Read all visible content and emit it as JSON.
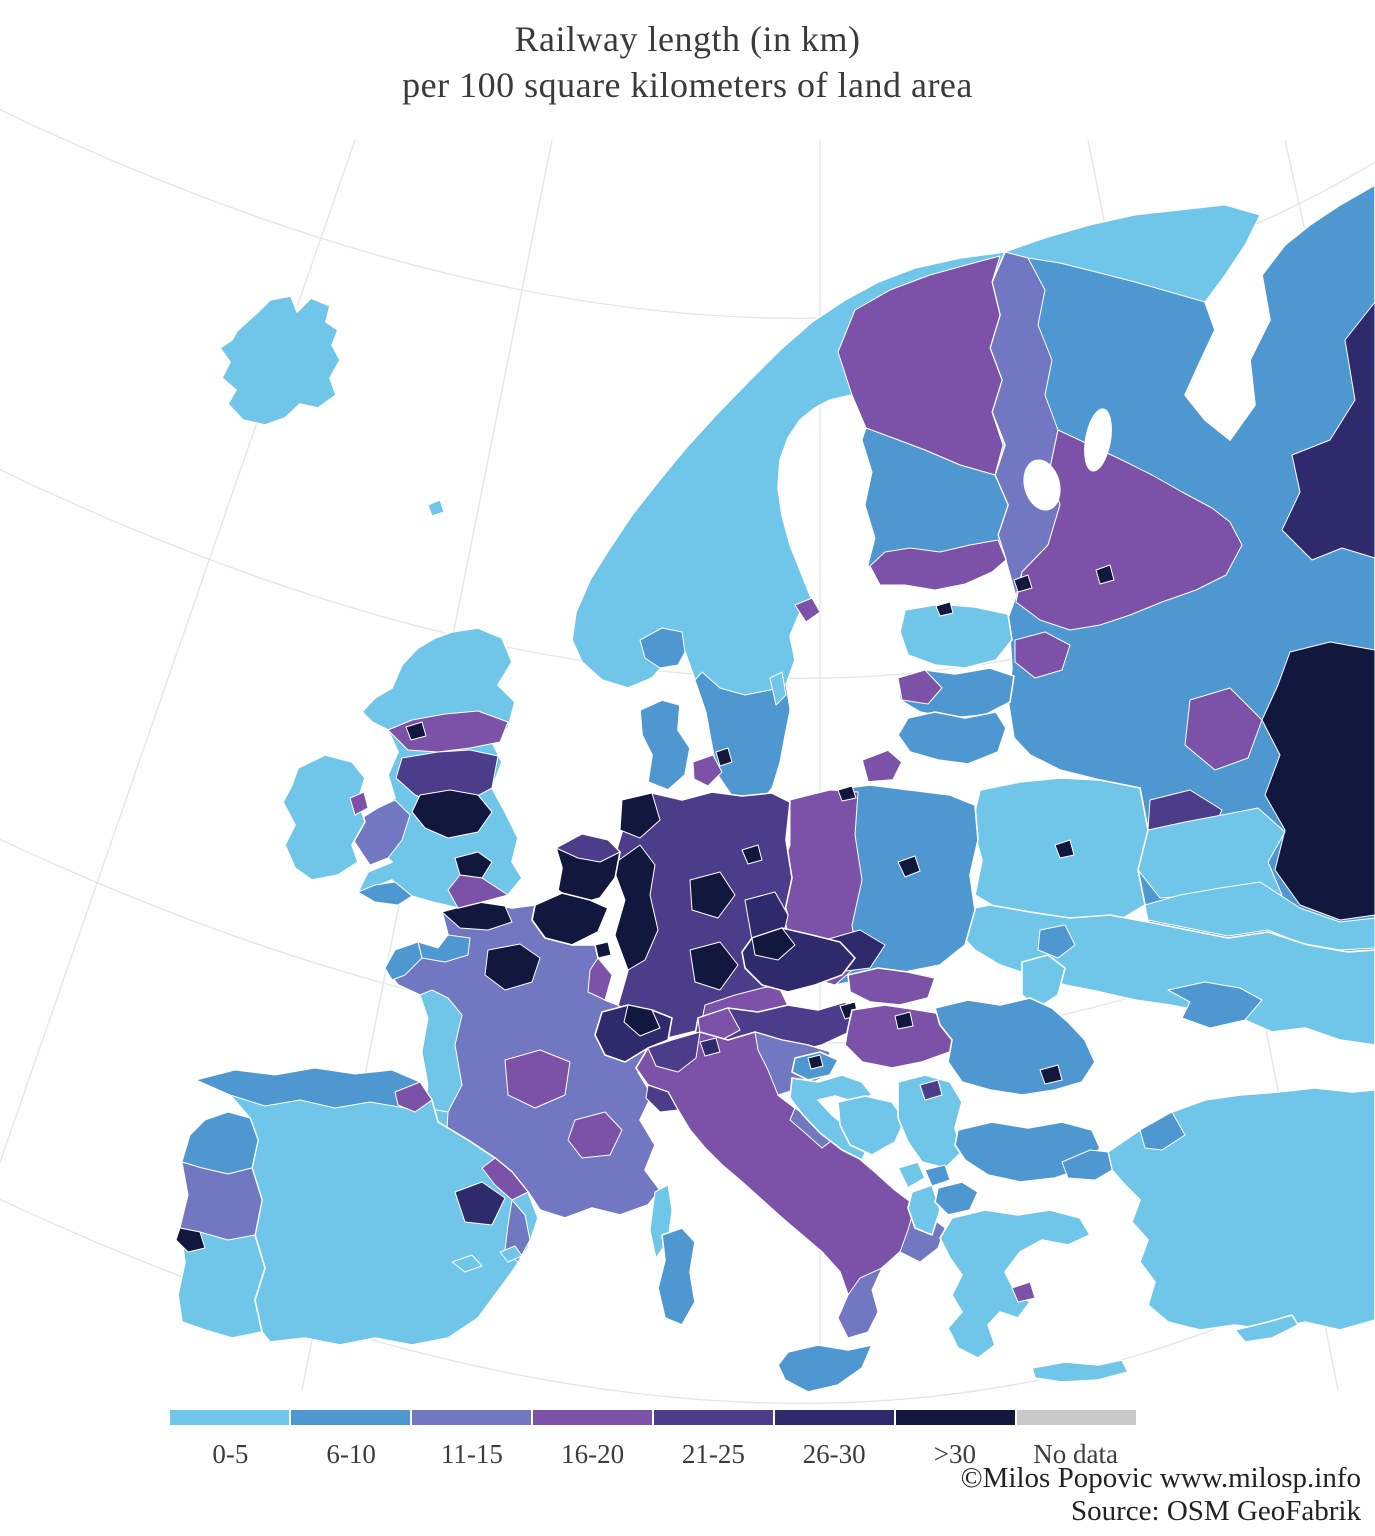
{
  "title": {
    "line1": "Railway length (in km)",
    "line2": "per 100 square kilometers of land area"
  },
  "legend": {
    "classes": [
      {
        "label": "0-5",
        "color": "#6FC6E9"
      },
      {
        "label": "6-10",
        "color": "#4E97D1"
      },
      {
        "label": "11-15",
        "color": "#7277C2"
      },
      {
        "label": "16-20",
        "color": "#7B52A7"
      },
      {
        "label": "21-25",
        "color": "#4C3D8A"
      },
      {
        "label": "26-30",
        "color": "#2F2A6B"
      },
      {
        "label": ">30",
        "color": "#12173D"
      },
      {
        "label": "No data",
        "color": "#C9C9C9"
      }
    ]
  },
  "attribution": {
    "line1": "©Milos Popovic www.milosp.info",
    "line2": "Source: OSM GeoFabrik"
  },
  "map": {
    "sea_color": "#FFFFFF",
    "graticule_color": "#E4E4E9",
    "border_color": "#FFFFFF",
    "regions": [
      {
        "id": "iceland",
        "name": "Iceland",
        "class": "0-5"
      },
      {
        "id": "faroe",
        "name": "Faroe Islands",
        "class": "0-5"
      },
      {
        "id": "scandinavia",
        "name": "Norway & central Sweden",
        "class": "0-5"
      },
      {
        "id": "lapland",
        "name": "Northern Sweden & Finnish Lapland",
        "class": "16-20"
      },
      {
        "id": "finland-mid",
        "name": "Central Finland",
        "class": "6-10"
      },
      {
        "id": "finland-south",
        "name": "Southern Finland",
        "class": "16-20"
      },
      {
        "id": "sweden-south",
        "name": "Southern Sweden",
        "class": "6-10"
      },
      {
        "id": "oslo",
        "name": "Oslo region",
        "class": "6-10"
      },
      {
        "id": "stockholm",
        "name": "Stockholm region",
        "class": "16-20"
      },
      {
        "id": "gotland",
        "name": "Gotland",
        "class": "0-5"
      },
      {
        "id": "denmark",
        "name": "Denmark (Jutland)",
        "class": "6-10"
      },
      {
        "id": "denmark-islands",
        "name": "Zealand",
        "class": "16-20"
      },
      {
        "id": "copenhagen",
        "name": "Copenhagen",
        "class": ">30"
      },
      {
        "id": "estonia",
        "name": "Estonia",
        "class": "0-5"
      },
      {
        "id": "tallinn",
        "name": "Tallinn",
        "class": ">30"
      },
      {
        "id": "latvia",
        "name": "Latvia",
        "class": "6-10"
      },
      {
        "id": "riga",
        "name": "Riga region",
        "class": "16-20"
      },
      {
        "id": "lithuania",
        "name": "Lithuania",
        "class": "6-10"
      },
      {
        "id": "kaliningrad",
        "name": "Kaliningrad",
        "class": "16-20"
      },
      {
        "id": "russia",
        "name": "Northwest Russia",
        "class": "6-10"
      },
      {
        "id": "murmansk",
        "name": "Murmansk & Kola",
        "class": "0-5"
      },
      {
        "id": "karelia",
        "name": "Karelia",
        "class": "11-15"
      },
      {
        "id": "nw-band",
        "name": "Leningrad–Novgorod band",
        "class": "16-20"
      },
      {
        "id": "st-petersburg",
        "name": "St. Petersburg",
        "class": ">30"
      },
      {
        "id": "novgorod",
        "name": "Novgorod city",
        "class": ">30"
      },
      {
        "id": "vologda",
        "name": "Vologda region",
        "class": "26-30"
      },
      {
        "id": "moscow",
        "name": "Moscow region",
        "class": ">30"
      },
      {
        "id": "tver",
        "name": "Tver region",
        "class": "16-20"
      },
      {
        "id": "smolensk",
        "name": "Smolensk region",
        "class": "21-25"
      },
      {
        "id": "pskov",
        "name": "Pskov region",
        "class": "16-20"
      },
      {
        "id": "russia-south-1",
        "name": "Western Russia (south) I",
        "class": "0-5"
      },
      {
        "id": "russia-south-2",
        "name": "Western Russia (south) II",
        "class": "0-5"
      },
      {
        "id": "belarus",
        "name": "Belarus",
        "class": "0-5"
      },
      {
        "id": "minsk",
        "name": "Minsk",
        "class": ">30"
      },
      {
        "id": "ukraine",
        "name": "Ukraine",
        "class": "0-5"
      },
      {
        "id": "kyiv",
        "name": "Kyiv region",
        "class": "6-10"
      },
      {
        "id": "crimea",
        "name": "Crimea",
        "class": "6-10"
      },
      {
        "id": "moldova",
        "name": "Moldova",
        "class": "0-5"
      },
      {
        "id": "poland",
        "name": "Eastern Poland",
        "class": "6-10"
      },
      {
        "id": "poland-west",
        "name": "Western Poland",
        "class": "16-20"
      },
      {
        "id": "silesia",
        "name": "Silesia",
        "class": "26-30"
      },
      {
        "id": "warsaw",
        "name": "Warsaw",
        "class": ">30"
      },
      {
        "id": "gdansk",
        "name": "Gdańsk",
        "class": ">30"
      },
      {
        "id": "germany",
        "name": "Germany",
        "class": "21-25"
      },
      {
        "id": "hamburg",
        "name": "Hamburg–Bremen",
        "class": ">30"
      },
      {
        "id": "germany-west",
        "name": "Rhine–Ruhr",
        "class": ">30"
      },
      {
        "id": "frankfurt",
        "name": "Frankfurt region",
        "class": ">30"
      },
      {
        "id": "stuttgart",
        "name": "Stuttgart region",
        "class": ">30"
      },
      {
        "id": "berlin",
        "name": "Berlin",
        "class": ">30"
      },
      {
        "id": "saxony",
        "name": "Saxony",
        "class": "26-30"
      },
      {
        "id": "bavaria",
        "name": "Southeast Bavaria",
        "class": "16-20"
      },
      {
        "id": "netherlands",
        "name": "Netherlands",
        "class": ">30"
      },
      {
        "id": "netherlands-north",
        "name": "Northern Netherlands",
        "class": "21-25"
      },
      {
        "id": "belgium",
        "name": "Belgium",
        "class": ">30"
      },
      {
        "id": "luxembourg",
        "name": "Luxembourg",
        "class": ">30"
      },
      {
        "id": "france",
        "name": "France (interior)",
        "class": "11-15"
      },
      {
        "id": "paris",
        "name": "Île-de-France (Paris)",
        "class": ">30"
      },
      {
        "id": "france-north",
        "name": "Nord-Pas-de-Calais",
        "class": ">30"
      },
      {
        "id": "normandy",
        "name": "Normandy",
        "class": "6-10"
      },
      {
        "id": "brittany",
        "name": "Brittany",
        "class": "6-10"
      },
      {
        "id": "france-west",
        "name": "Western France",
        "class": "0-5"
      },
      {
        "id": "france-south",
        "name": "Southern France",
        "class": "0-5"
      },
      {
        "id": "france-center",
        "name": "Central France",
        "class": "16-20"
      },
      {
        "id": "lyon",
        "name": "Lyon region",
        "class": "16-20"
      },
      {
        "id": "alsace",
        "name": "Alsace",
        "class": "16-20"
      },
      {
        "id": "corsica",
        "name": "Corsica",
        "class": "0-5"
      },
      {
        "id": "spain",
        "name": "Spain",
        "class": "0-5"
      },
      {
        "id": "spain-north",
        "name": "Northern Spain",
        "class": "6-10"
      },
      {
        "id": "basque",
        "name": "Basque Country",
        "class": "16-20"
      },
      {
        "id": "madrid",
        "name": "Madrid",
        "class": "26-30"
      },
      {
        "id": "catalonia",
        "name": "Catalonia",
        "class": "16-20"
      },
      {
        "id": "valencia",
        "name": "Valencia coast",
        "class": "11-15"
      },
      {
        "id": "balearic-1",
        "name": "Mallorca",
        "class": "0-5"
      },
      {
        "id": "balearic-2",
        "name": "Menorca",
        "class": "0-5"
      },
      {
        "id": "portugal",
        "name": "Portugal",
        "class": "0-5"
      },
      {
        "id": "portugal-north",
        "name": "Northern Portugal",
        "class": "6-10"
      },
      {
        "id": "portugal-center",
        "name": "Central Portugal",
        "class": "11-15"
      },
      {
        "id": "lisbon",
        "name": "Lisbon",
        "class": ">30"
      },
      {
        "id": "uk",
        "name": "United Kingdom (Scotland base)",
        "class": "0-5"
      },
      {
        "id": "uk-central-scotland",
        "name": "Central Scotland belt",
        "class": "16-20"
      },
      {
        "id": "glasgow",
        "name": "Glasgow–Edinburgh",
        "class": ">30"
      },
      {
        "id": "uk-north-england",
        "name": "Northern England",
        "class": "21-25"
      },
      {
        "id": "uk-england-core",
        "name": "Manchester–Birmingham core",
        "class": ">30"
      },
      {
        "id": "wales",
        "name": "Wales",
        "class": "11-15"
      },
      {
        "id": "london",
        "name": "Greater London",
        "class": ">30"
      },
      {
        "id": "uk-se-england",
        "name": "Southeast England",
        "class": "16-20"
      },
      {
        "id": "uk-sw-england",
        "name": "Southwest England",
        "class": "6-10"
      },
      {
        "id": "ireland",
        "name": "Ireland",
        "class": "0-5"
      },
      {
        "id": "dublin",
        "name": "Dublin region",
        "class": "16-20"
      },
      {
        "id": "switzerland",
        "name": "Switzerland",
        "class": "26-30"
      },
      {
        "id": "switzerland-core",
        "name": "Swiss plateau",
        "class": ">30"
      },
      {
        "id": "austria",
        "name": "Austria",
        "class": "21-25"
      },
      {
        "id": "tyrol",
        "name": "Tyrol",
        "class": "16-20"
      },
      {
        "id": "vienna",
        "name": "Vienna",
        "class": ">30"
      },
      {
        "id": "czechia",
        "name": "Czechia",
        "class": "26-30"
      },
      {
        "id": "czechia-west",
        "name": "Western Czechia",
        "class": ">30"
      },
      {
        "id": "slovakia",
        "name": "Slovakia",
        "class": "16-20"
      },
      {
        "id": "hungary",
        "name": "Hungary",
        "class": "16-20"
      },
      {
        "id": "budapest",
        "name": "Budapest",
        "class": ">30"
      },
      {
        "id": "italy",
        "name": "Italy",
        "class": "16-20"
      },
      {
        "id": "italy-nw",
        "name": "Northwest Italy",
        "class": "21-25"
      },
      {
        "id": "milan",
        "name": "Milan region",
        "class": "26-30"
      },
      {
        "id": "liguria",
        "name": "Liguria",
        "class": "21-25"
      },
      {
        "id": "italy-ne",
        "name": "Northeast Italy",
        "class": "11-15"
      },
      {
        "id": "adriatic",
        "name": "Adriatic coast (Marche)",
        "class": "11-15"
      },
      {
        "id": "puglia",
        "name": "Puglia",
        "class": "11-15"
      },
      {
        "id": "calabria",
        "name": "Calabria",
        "class": "11-15"
      },
      {
        "id": "sicily",
        "name": "Sicily",
        "class": "6-10"
      },
      {
        "id": "sardinia",
        "name": "Sardinia",
        "class": "6-10"
      },
      {
        "id": "slovenia",
        "name": "Slovenia",
        "class": "6-10"
      },
      {
        "id": "ljubljana",
        "name": "Ljubljana",
        "class": ">30"
      },
      {
        "id": "croatia",
        "name": "Croatia",
        "class": "0-5"
      },
      {
        "id": "bosnia",
        "name": "Bosnia and Herzegovina",
        "class": "0-5"
      },
      {
        "id": "serbia",
        "name": "Serbia",
        "class": "0-5"
      },
      {
        "id": "belgrade",
        "name": "Belgrade",
        "class": "21-25"
      },
      {
        "id": "montenegro",
        "name": "Montenegro",
        "class": "0-5"
      },
      {
        "id": "albania",
        "name": "Albania",
        "class": "0-5"
      },
      {
        "id": "kosovo",
        "name": "Kosovo",
        "class": "6-10"
      },
      {
        "id": "macedonia",
        "name": "North Macedonia",
        "class": "6-10"
      },
      {
        "id": "romania",
        "name": "Romania",
        "class": "6-10"
      },
      {
        "id": "bucharest",
        "name": "Bucharest",
        "class": ">30"
      },
      {
        "id": "bulgaria",
        "name": "Bulgaria",
        "class": "6-10"
      },
      {
        "id": "greece",
        "name": "Greece",
        "class": "0-5"
      },
      {
        "id": "athens",
        "name": "Athens region",
        "class": "16-20"
      },
      {
        "id": "crete",
        "name": "Crete",
        "class": "0-5"
      },
      {
        "id": "turkey",
        "name": "Turkey",
        "class": "0-5"
      },
      {
        "id": "thrace",
        "name": "Turkish Thrace",
        "class": "6-10"
      },
      {
        "id": "marmara",
        "name": "Marmara region",
        "class": "6-10"
      },
      {
        "id": "cyprus",
        "name": "Cyprus",
        "class": "0-5"
      }
    ]
  }
}
